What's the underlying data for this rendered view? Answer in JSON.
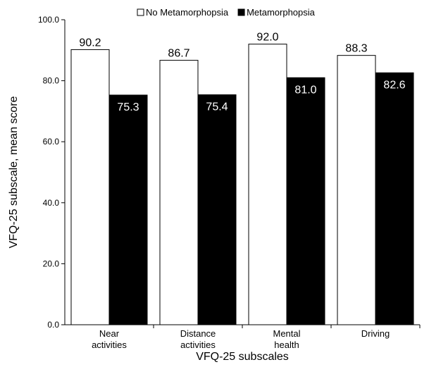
{
  "chart_data": {
    "type": "bar",
    "title": "",
    "xlabel": "VFQ-25 subscales",
    "ylabel": "VFQ-25 subscale, mean score",
    "ylim": [
      0,
      100
    ],
    "yticks": [
      "0.0",
      "20.0",
      "40.0",
      "60.0",
      "80.0",
      "100.0"
    ],
    "categories": [
      [
        "Near",
        "activities"
      ],
      [
        "Distance",
        "activities"
      ],
      [
        "Mental",
        "health"
      ],
      [
        "Driving"
      ]
    ],
    "legend_position": "top",
    "series": [
      {
        "name": "No Metamorphopsia",
        "color": "#ffffff",
        "label_color": "#000000",
        "values": [
          90.2,
          86.7,
          92.0,
          88.3
        ],
        "labels": [
          "90.2",
          "86.7",
          "92.0",
          "88.3"
        ]
      },
      {
        "name": "Metamorphopsia",
        "color": "#000000",
        "label_color": "#ffffff",
        "values": [
          75.3,
          75.4,
          81.0,
          82.6
        ],
        "labels": [
          "75.3",
          "75.4",
          "81.0",
          "82.6"
        ]
      }
    ]
  }
}
